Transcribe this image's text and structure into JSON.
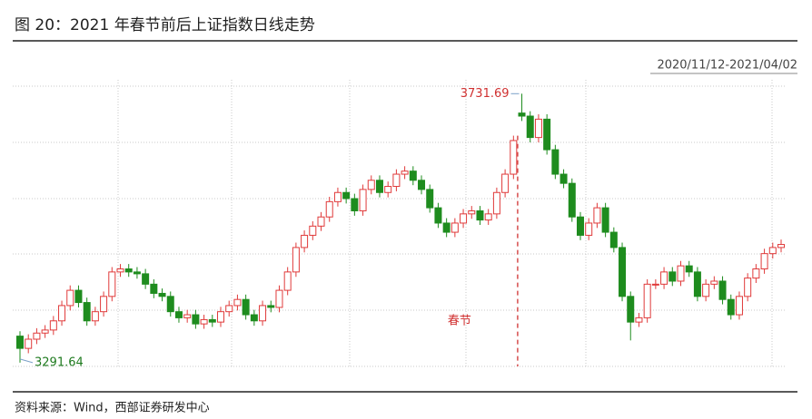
{
  "chart_data": {
    "type": "candlestick",
    "title": "图 20：2021 年春节前后上证指数日线走势",
    "subtitle": "2020/11/12-2021/04/02",
    "annotation": "春节",
    "source": "资料来源：Wind，西部证券研发中心",
    "up_color": "#e03a3a",
    "down_color": "#1e8c1e",
    "ylim": [
      3284,
      3744
    ],
    "open": [
      3335,
      3315,
      3330,
      3340,
      3345,
      3360,
      3385,
      3410,
      3390,
      3360,
      3375,
      3400,
      3440,
      3445,
      3440,
      3437,
      3420,
      3405,
      3400,
      3375,
      3365,
      3370,
      3355,
      3362,
      3358,
      3375,
      3385,
      3395,
      3370,
      3360,
      3385,
      3382,
      3410,
      3440,
      3480,
      3500,
      3515,
      3530,
      3555,
      3570,
      3560,
      3540,
      3575,
      3590,
      3570,
      3580,
      3600,
      3605,
      3590,
      3575,
      3545,
      3520,
      3505,
      3520,
      3535,
      3540,
      3525,
      3535,
      3570,
      3600,
      3700,
      3695,
      3660,
      3690,
      3640,
      3600,
      3585,
      3530,
      3500,
      3520,
      3545,
      3505,
      3480,
      3400,
      3358,
      3365,
      3420,
      3420,
      3440,
      3425,
      3450,
      3440,
      3400,
      3420,
      3425,
      3395,
      3370,
      3400,
      3430,
      3445,
      3470,
      3480
    ],
    "high": [
      3343,
      3338,
      3348,
      3353,
      3368,
      3393,
      3418,
      3418,
      3398,
      3383,
      3408,
      3448,
      3453,
      3453,
      3448,
      3445,
      3428,
      3413,
      3408,
      3383,
      3378,
      3378,
      3370,
      3370,
      3383,
      3393,
      3403,
      3403,
      3378,
      3393,
      3393,
      3418,
      3448,
      3488,
      3508,
      3523,
      3538,
      3563,
      3578,
      3578,
      3568,
      3583,
      3598,
      3598,
      3588,
      3608,
      3613,
      3613,
      3598,
      3583,
      3553,
      3528,
      3528,
      3543,
      3548,
      3548,
      3543,
      3578,
      3608,
      3663,
      3731.69,
      3703,
      3698,
      3698,
      3648,
      3608,
      3593,
      3538,
      3528,
      3553,
      3553,
      3513,
      3488,
      3408,
      3373,
      3428,
      3428,
      3448,
      3448,
      3458,
      3458,
      3448,
      3428,
      3433,
      3433,
      3403,
      3408,
      3438,
      3453,
      3478,
      3488,
      3493
    ],
    "low": [
      3291.64,
      3307,
      3322,
      3332,
      3337,
      3352,
      3377,
      3382,
      3352,
      3352,
      3367,
      3392,
      3432,
      3432,
      3429,
      3412,
      3397,
      3392,
      3367,
      3357,
      3357,
      3347,
      3347,
      3350,
      3350,
      3367,
      3377,
      3362,
      3352,
      3352,
      3374,
      3374,
      3402,
      3432,
      3472,
      3492,
      3507,
      3522,
      3547,
      3552,
      3532,
      3532,
      3567,
      3562,
      3562,
      3572,
      3592,
      3582,
      3567,
      3537,
      3512,
      3497,
      3497,
      3512,
      3527,
      3517,
      3517,
      3527,
      3562,
      3592,
      3687,
      3652,
      3652,
      3632,
      3592,
      3577,
      3522,
      3492,
      3492,
      3512,
      3497,
      3472,
      3392,
      3328,
      3350,
      3357,
      3412,
      3412,
      3417,
      3417,
      3432,
      3392,
      3392,
      3412,
      3387,
      3362,
      3362,
      3392,
      3422,
      3437,
      3462,
      3472
    ],
    "close": [
      3315,
      3330,
      3340,
      3345,
      3360,
      3385,
      3410,
      3390,
      3360,
      3375,
      3400,
      3440,
      3445,
      3440,
      3437,
      3420,
      3405,
      3400,
      3375,
      3365,
      3370,
      3355,
      3362,
      3358,
      3375,
      3385,
      3395,
      3370,
      3360,
      3385,
      3382,
      3410,
      3440,
      3480,
      3500,
      3515,
      3530,
      3555,
      3570,
      3560,
      3540,
      3575,
      3590,
      3570,
      3580,
      3600,
      3605,
      3590,
      3575,
      3545,
      3520,
      3505,
      3520,
      3535,
      3540,
      3525,
      3535,
      3570,
      3600,
      3655,
      3695,
      3660,
      3690,
      3640,
      3600,
      3585,
      3530,
      3500,
      3520,
      3545,
      3505,
      3480,
      3400,
      3358,
      3365,
      3420,
      3420,
      3440,
      3425,
      3450,
      3440,
      3400,
      3420,
      3425,
      3395,
      3370,
      3400,
      3430,
      3445,
      3470,
      3480,
      3485
    ]
  }
}
